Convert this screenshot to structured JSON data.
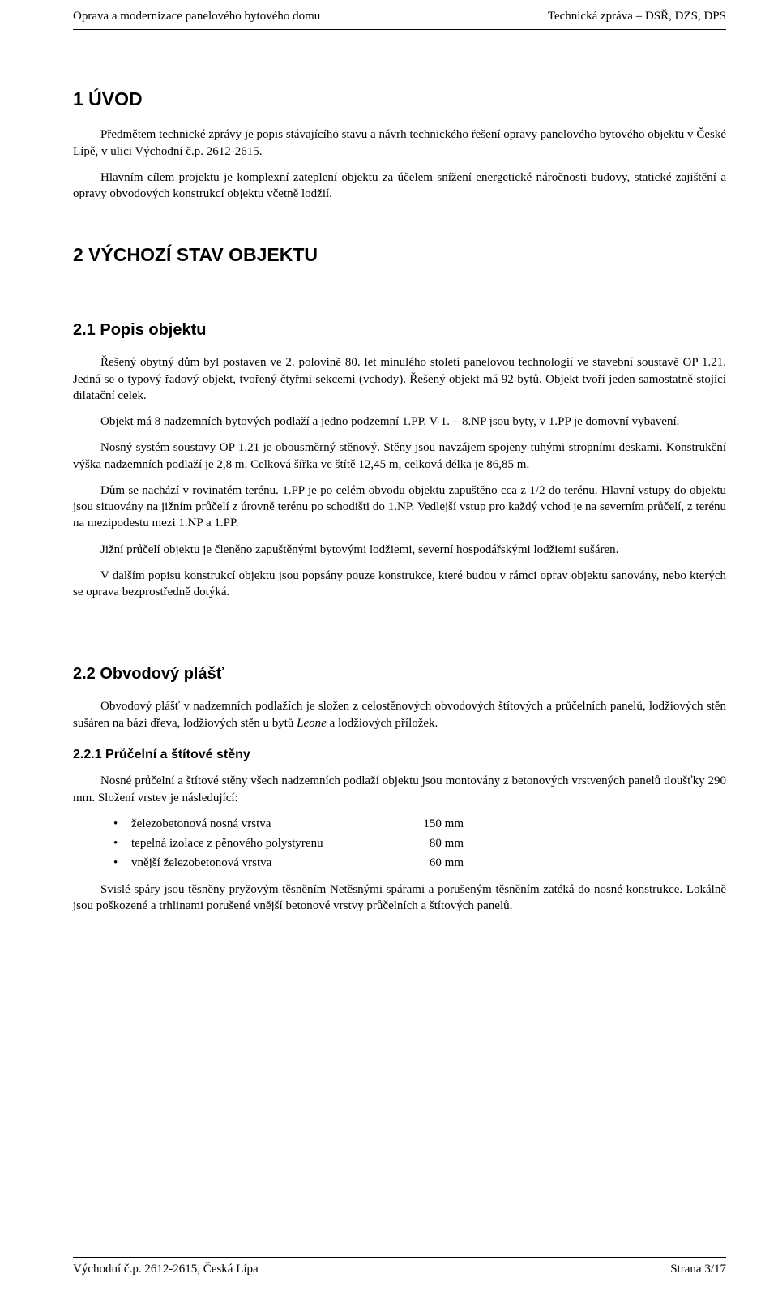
{
  "header": {
    "left": "Oprava a modernizace panelového bytového domu",
    "right": "Technická zpráva – DSŘ, DZS, DPS"
  },
  "footer": {
    "left": "Východní č.p. 2612-2615, Česká Lípa",
    "right": "Strana 3/17"
  },
  "sec1": {
    "title": "1 ÚVOD",
    "p1": "Předmětem technické zprávy je popis stávajícího stavu a návrh technického řešení opravy panelového bytového objektu v České Lípě, v ulici Východní č.p. 2612-2615.",
    "p2": "Hlavním cílem projektu je komplexní zateplení objektu za účelem snížení energetické náročnosti budovy, statické zajištění a opravy obvodových konstrukcí objektu včetně lodžií."
  },
  "sec2": {
    "title": "2 VÝCHOZÍ STAV OBJEKTU"
  },
  "sec21": {
    "title": "2.1 Popis objektu",
    "p1": "Řešený obytný dům byl postaven ve 2. polovině 80. let minulého století panelovou technologií ve stavební soustavě OP 1.21. Jedná se o typový řadový objekt, tvořený čtyřmi sekcemi (vchody). Řešený objekt má 92 bytů. Objekt tvoří jeden samostatně stojící dilatační celek.",
    "p2": "Objekt má 8 nadzemních bytových podlaží a jedno podzemní 1.PP. V 1. – 8.NP jsou byty, v 1.PP je domovní vybavení.",
    "p3": "Nosný systém soustavy OP 1.21 je obousměrný stěnový. Stěny jsou navzájem spojeny tuhými stropními deskami. Konstrukční výška nadzemních podlaží je 2,8 m. Celková šířka ve štítě 12,45 m, celková délka je 86,85 m.",
    "p4": "Dům se nachází v rovinatém terénu. 1.PP je po celém obvodu objektu zapuštěno cca z 1/2 do terénu. Hlavní vstupy do objektu jsou situovány na jižním průčelí z úrovně terénu po schodišti do 1.NP. Vedlejší vstup pro každý vchod je na severním průčelí, z terénu na mezipodestu mezi 1.NP a 1.PP.",
    "p5": "Jižní průčelí objektu je členěno zapuštěnými bytovými lodžiemi, severní hospodářskými lodžiemi sušáren.",
    "p6": "V dalším popisu konstrukcí objektu jsou popsány pouze konstrukce, které budou v rámci oprav objektu sanovány, nebo kterých se oprava bezprostředně dotýká."
  },
  "sec22": {
    "title": "2.2 Obvodový plášť",
    "p1a": "Obvodový plášť v nadzemních podlažích je složen z celostěnových obvodových štítových a průčelních panelů, lodžiových stěn sušáren na bázi dřeva, lodžiových stěn u bytů ",
    "p1_italic": "Leone",
    "p1b": " a lodžiových příložek."
  },
  "sec221": {
    "title": "2.2.1 Průčelní a štítové stěny",
    "p1": "Nosné průčelní a štítové stěny všech nadzemních podlaží objektu jsou montovány z betonových vrstvených panelů tloušťky 290 mm. Složení vrstev je následující:",
    "bullets": [
      {
        "label": "železobetonová nosná vrstva",
        "value": "150 mm"
      },
      {
        "label": "tepelná izolace z pěnového polystyrenu",
        "value": "80 mm"
      },
      {
        "label": "vnější železobetonová vrstva",
        "value": "60 mm"
      }
    ],
    "p2": "Svislé spáry jsou těsněny pryžovým těsněním Netěsnými spárami a porušeným těsněním zatéká do nosné konstrukce. Lokálně jsou poškozené a trhlinami porušené vnější betonové vrstvy průčelních a štítových panelů."
  }
}
